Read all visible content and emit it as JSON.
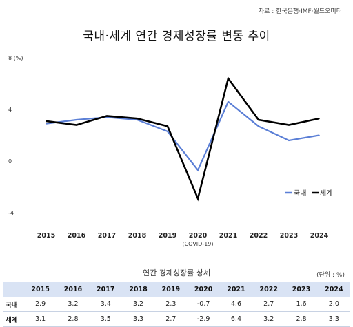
{
  "source": "자료 : 한국은행·IMF·월드오미터",
  "title": "국내·세계 연간 경제성장률 변동 추이",
  "chart_data": {
    "type": "line",
    "categories": [
      "2015",
      "2016",
      "2017",
      "2018",
      "2019",
      "2020",
      "2021",
      "2022",
      "2023",
      "2024"
    ],
    "category_note": {
      "2020": "(COVID-19)"
    },
    "series": [
      {
        "name": "국내",
        "color": "#5b7fd6",
        "values": [
          2.9,
          3.2,
          3.4,
          3.2,
          2.3,
          -0.7,
          4.6,
          2.7,
          1.6,
          2.0
        ]
      },
      {
        "name": "세계",
        "color": "#000000",
        "values": [
          3.1,
          2.8,
          3.5,
          3.3,
          2.7,
          -2.9,
          6.4,
          3.2,
          2.8,
          3.3
        ]
      }
    ],
    "y_ticks": [
      "8 (%)",
      "4",
      "0",
      "-4"
    ],
    "ylim": [
      -4,
      8
    ],
    "grid": false,
    "legend": "right-bottom"
  },
  "table": {
    "title": "연간 경제성장률 상세",
    "unit": "(단위 : %)",
    "header": [
      "2015",
      "2016",
      "2017",
      "2018",
      "2019",
      "2020",
      "2021",
      "2022",
      "2023",
      "2024"
    ],
    "rows": [
      {
        "label": "국내",
        "values": [
          "2.9",
          "3.2",
          "3.4",
          "3.2",
          "2.3",
          "-0.7",
          "4.6",
          "2.7",
          "1.6",
          "2.0"
        ]
      },
      {
        "label": "세계",
        "values": [
          "3.1",
          "2.8",
          "3.5",
          "3.3",
          "2.7",
          "-2.9",
          "6.4",
          "3.2",
          "2.8",
          "3.3"
        ]
      }
    ]
  }
}
